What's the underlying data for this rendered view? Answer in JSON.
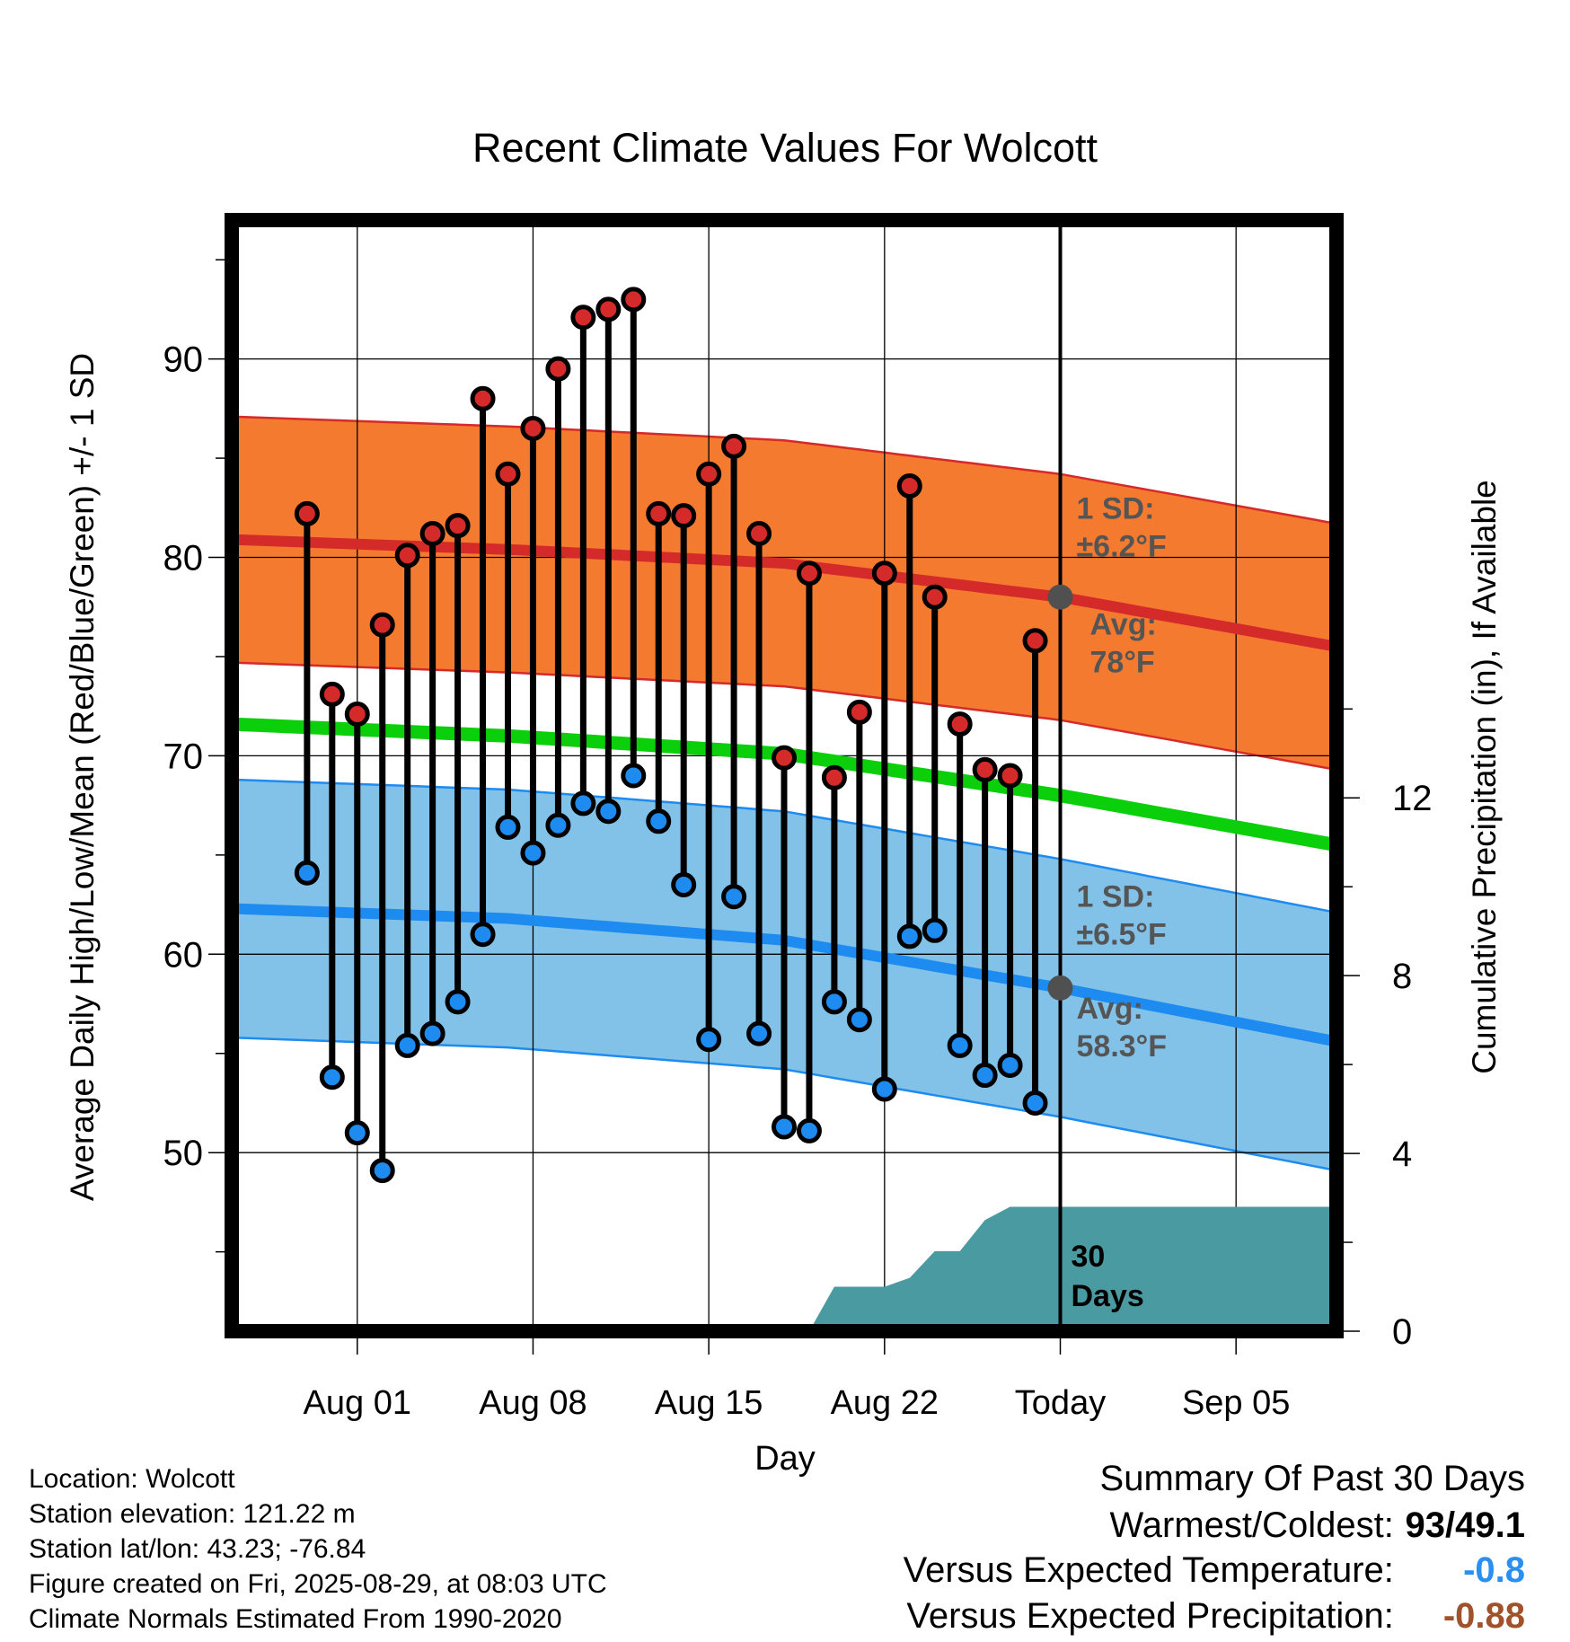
{
  "chart_data": {
    "type": "line",
    "title": "Recent Climate Values For Wolcott",
    "xlabel": "Day",
    "ylabel": "Average Daily High/Low/Mean (Red/Blue/Green) +/- 1 SD",
    "y2label": "Cumulative Precipitation (in), If Available",
    "x_range_days": [
      -33,
      11
    ],
    "ylim": [
      41,
      97
    ],
    "y2lim": [
      0,
      25
    ],
    "yticks": [
      50,
      60,
      70,
      80,
      90
    ],
    "y2ticks": [
      0,
      4,
      8,
      12
    ],
    "xticks": [
      {
        "label": "Aug 01",
        "day": -28
      },
      {
        "label": "Aug 08",
        "day": -21
      },
      {
        "label": "Aug 15",
        "day": -14
      },
      {
        "label": "Aug 22",
        "day": -7
      },
      {
        "label": "Today",
        "day": 0
      },
      {
        "label": "Sep 05",
        "day": 7
      }
    ],
    "grid": true,
    "today_line": {
      "label_line1": "30",
      "label_line2": "Days"
    },
    "daily": {
      "days": [
        -30,
        -29,
        -28,
        -27,
        -26,
        -25,
        -24,
        -23,
        -22,
        -21,
        -20,
        -19,
        -18,
        -17,
        -16,
        -15,
        -14,
        -13,
        -12,
        -11,
        -10,
        -9,
        -8,
        -7,
        -6,
        -5,
        -4,
        -3,
        -2,
        -1
      ],
      "highs": [
        82.2,
        73.1,
        72.1,
        76.6,
        80.1,
        81.2,
        81.6,
        88,
        84.2,
        86.5,
        89.5,
        92.1,
        92.5,
        93,
        82.2,
        82.1,
        84.2,
        85.6,
        81.2,
        69.9,
        79.2,
        68.9,
        72.2,
        79.2,
        83.6,
        78,
        71.6,
        69.3,
        69,
        75.8
      ],
      "lows": [
        64.1,
        53.8,
        51,
        49.1,
        55.4,
        56,
        57.6,
        61,
        66.4,
        65.1,
        66.5,
        67.6,
        67.2,
        69,
        66.7,
        63.5,
        55.7,
        62.9,
        56,
        51.3,
        51.1,
        57.6,
        56.7,
        53.2,
        60.9,
        61.2,
        55.4,
        53.9,
        54.4,
        52.5
      ]
    },
    "normals": {
      "days": [
        -33,
        -22,
        -11,
        0,
        11
      ],
      "high_avg": [
        80.9,
        80.4,
        79.7,
        78,
        75.5
      ],
      "high_sd": 6.2,
      "mean_avg": [
        71.6,
        71,
        70.1,
        68,
        65.5
      ],
      "low_avg": [
        62.3,
        61.8,
        60.7,
        58.3,
        55.6
      ],
      "low_sd": 6.5
    },
    "annotations": {
      "high_sd_line1": "1 SD:",
      "high_sd_line2": "±6.2°F",
      "high_avg_line1": "Avg:",
      "high_avg_line2": "78°F",
      "low_sd_line1": "1 SD:",
      "low_sd_line2": "±6.5°F",
      "low_avg_line1": "Avg:",
      "low_avg_line2": "58.3°F"
    },
    "precip": {
      "days": [
        -10,
        -9,
        -8,
        -7,
        -6,
        -5,
        -4,
        -3,
        -2,
        -1,
        0,
        11
      ],
      "cum": [
        0,
        1.0,
        1.0,
        1.0,
        1.2,
        1.8,
        1.8,
        2.5,
        2.8,
        2.8,
        2.8,
        2.8
      ]
    },
    "colors": {
      "high_band": "#f47a30",
      "high_line": "#d42a2a",
      "low_band": "#82c2e8",
      "low_line": "#1e8bf0",
      "mean_line": "#0ccf0c",
      "high_dot": "#d42a2a",
      "low_dot": "#1e8bf0",
      "precip": "#4a9aa2",
      "today_dot": "#505050",
      "annotation_text": "#555555"
    }
  },
  "footer": {
    "location": "Location: Wolcott",
    "elevation": "Station elevation: 121.22 m",
    "latlon": "Station lat/lon: 43.23; -76.84",
    "created": "Figure created on Fri, 2025-08-29, at 08:03 UTC",
    "normals": "Climate Normals Estimated From 1990-2020"
  },
  "summary": {
    "title": "Summary Of Past 30 Days",
    "warmest_label": "Warmest/Coldest:",
    "warmest_value": "93/49.1",
    "temp_label": "Versus Expected Temperature:",
    "temp_value": "-0.8",
    "precip_label": "Versus Expected Precipitation:",
    "precip_value": "-0.88",
    "temp_color": "#2a8ff0",
    "precip_color": "#a0522d"
  }
}
